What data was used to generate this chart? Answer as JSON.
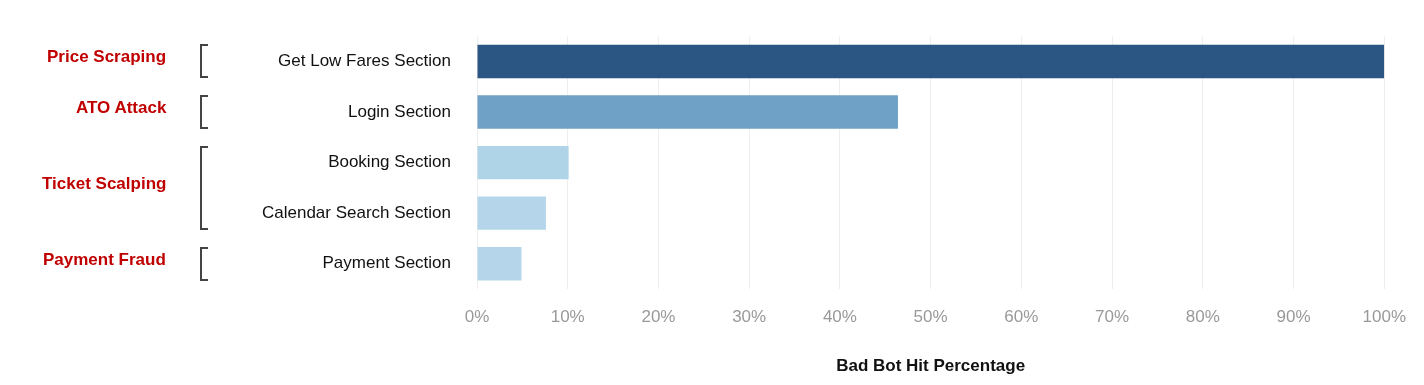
{
  "chart_data": {
    "type": "bar",
    "orientation": "horizontal",
    "xlabel": "Bad Bot Hit Percentage",
    "categories": [
      "Get Low Fares Section",
      "Login Section",
      "Booking Section",
      "Calendar Search Section",
      "Payment Section"
    ],
    "values": [
      100,
      46.4,
      10.1,
      7.6,
      4.9
    ],
    "colors": [
      "#2b5582",
      "#6fa0c6",
      "#b0d4e7",
      "#b5d6ea",
      "#b5d6ea"
    ],
    "xlim": [
      0,
      100
    ],
    "xticks": [
      {
        "value": 0,
        "label": "0%"
      },
      {
        "value": 10,
        "label": "10%"
      },
      {
        "value": 20,
        "label": "20%"
      },
      {
        "value": 30,
        "label": "30%"
      },
      {
        "value": 40,
        "label": "40%"
      },
      {
        "value": 50,
        "label": "50%"
      },
      {
        "value": 60,
        "label": "60%"
      },
      {
        "value": 70,
        "label": "70%"
      },
      {
        "value": 80,
        "label": "80%"
      },
      {
        "value": 90,
        "label": "90%"
      },
      {
        "value": 100,
        "label": "100%"
      }
    ],
    "grid": "x",
    "legend": false,
    "annotations": [
      "Price Scraping",
      "ATO Attack",
      "Ticket Scalping",
      "Payment Fraud"
    ]
  }
}
